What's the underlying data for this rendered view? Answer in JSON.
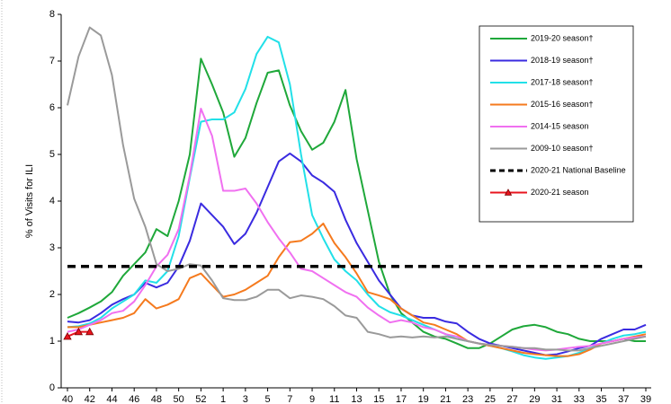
{
  "chart_data": {
    "type": "line",
    "ylabel": "% of Visits for ILI",
    "categories": [
      "40",
      null,
      "42",
      null,
      "44",
      null,
      "46",
      null,
      "48",
      null,
      "50",
      null,
      "52",
      null,
      "1",
      null,
      "3",
      null,
      "5",
      null,
      "7",
      null,
      "9",
      null,
      "11",
      null,
      "13",
      null,
      "15",
      null,
      "17",
      null,
      "19",
      null,
      "21",
      null,
      "23",
      null,
      "25",
      null,
      "27",
      null,
      "29",
      null,
      "31",
      null,
      "33",
      null,
      "35",
      null,
      "37",
      null,
      "39"
    ],
    "ylim": [
      0,
      8
    ],
    "yticks": [
      0,
      1,
      2,
      3,
      4,
      5,
      6,
      7,
      8
    ],
    "legend": "upper right",
    "series": [
      {
        "name": "2019-20 season†",
        "color": "#1fa83a",
        "values": [
          1.5,
          1.6,
          1.72,
          1.85,
          2.05,
          2.4,
          2.65,
          2.9,
          3.4,
          3.25,
          4.0,
          5.0,
          7.05,
          6.5,
          5.9,
          4.95,
          5.35,
          6.1,
          6.75,
          6.8,
          6.05,
          5.5,
          5.1,
          5.25,
          5.7,
          6.38,
          4.9,
          3.8,
          2.7,
          2.0,
          1.6,
          1.4,
          1.2,
          1.1,
          1.05,
          0.95,
          0.85,
          0.85,
          0.95,
          1.1,
          1.25,
          1.32,
          1.35,
          1.3,
          1.2,
          1.15,
          1.05,
          1.0,
          1.0,
          1.0,
          1.05,
          1.0,
          1.0
        ]
      },
      {
        "name": "2018-19 season†",
        "color": "#3a2be0",
        "values": [
          1.42,
          1.4,
          1.45,
          1.6,
          1.78,
          1.9,
          2.0,
          2.25,
          2.15,
          2.25,
          2.6,
          3.15,
          3.95,
          3.7,
          3.45,
          3.08,
          3.3,
          3.75,
          4.3,
          4.85,
          5.02,
          4.85,
          4.55,
          4.4,
          4.2,
          3.6,
          3.1,
          2.7,
          2.3,
          2.0,
          1.7,
          1.55,
          1.5,
          1.5,
          1.42,
          1.38,
          1.2,
          1.05,
          0.95,
          0.9,
          0.85,
          0.8,
          0.75,
          0.7,
          0.72,
          0.78,
          0.85,
          0.9,
          1.05,
          1.15,
          1.25,
          1.25,
          1.35
        ]
      },
      {
        "name": "2017-18 season†",
        "color": "#22e0e8",
        "values": [
          1.3,
          1.32,
          1.38,
          1.5,
          1.7,
          1.85,
          2.0,
          2.3,
          2.25,
          2.5,
          3.25,
          4.5,
          5.7,
          5.75,
          5.75,
          5.9,
          6.4,
          7.15,
          7.52,
          7.4,
          6.5,
          5.0,
          3.7,
          3.2,
          2.75,
          2.5,
          2.3,
          2.0,
          1.75,
          1.62,
          1.55,
          1.45,
          1.35,
          1.25,
          1.15,
          1.05,
          1.0,
          0.95,
          0.9,
          0.85,
          0.78,
          0.7,
          0.65,
          0.62,
          0.65,
          0.68,
          0.75,
          0.85,
          0.95,
          1.05,
          1.12,
          1.15,
          1.2
        ]
      },
      {
        "name": "2015-16 season†",
        "color": "#f57a1e",
        "values": [
          1.3,
          1.3,
          1.35,
          1.4,
          1.45,
          1.5,
          1.6,
          1.9,
          1.7,
          1.78,
          1.9,
          2.35,
          2.45,
          2.2,
          1.95,
          2.0,
          2.1,
          2.25,
          2.4,
          2.8,
          3.12,
          3.15,
          3.3,
          3.52,
          3.1,
          2.8,
          2.45,
          2.05,
          1.98,
          1.9,
          1.7,
          1.55,
          1.4,
          1.35,
          1.25,
          1.15,
          1.0,
          0.95,
          0.9,
          0.85,
          0.8,
          0.75,
          0.72,
          0.7,
          0.68,
          0.68,
          0.72,
          0.82,
          0.95,
          1.0,
          1.05,
          1.1,
          1.15
        ]
      },
      {
        "name": "2014-15 season",
        "color": "#f070f0",
        "values": [
          1.2,
          1.25,
          1.35,
          1.45,
          1.6,
          1.65,
          1.85,
          2.2,
          2.6,
          2.85,
          3.4,
          4.55,
          5.98,
          5.4,
          4.22,
          4.22,
          4.27,
          3.95,
          3.55,
          3.2,
          2.9,
          2.55,
          2.5,
          2.35,
          2.2,
          2.05,
          1.95,
          1.72,
          1.55,
          1.4,
          1.45,
          1.4,
          1.3,
          1.25,
          1.15,
          1.1,
          1.0,
          0.95,
          0.92,
          0.9,
          0.88,
          0.85,
          0.82,
          0.8,
          0.82,
          0.85,
          0.88,
          0.9,
          0.95,
          1.0,
          1.05,
          1.08,
          1.1
        ]
      },
      {
        "name": "2009-10 season†",
        "color": "#9a9a9a",
        "values": [
          6.05,
          7.1,
          7.72,
          7.55,
          6.7,
          5.2,
          4.05,
          3.45,
          2.65,
          2.5,
          2.55,
          2.65,
          2.62,
          2.3,
          1.92,
          1.88,
          1.88,
          1.95,
          2.1,
          2.1,
          1.92,
          1.98,
          1.95,
          1.9,
          1.75,
          1.55,
          1.5,
          1.2,
          1.15,
          1.08,
          1.1,
          1.08,
          1.1,
          1.08,
          1.1,
          1.05,
          1.0,
          0.95,
          0.92,
          0.9,
          0.88,
          0.85,
          0.85,
          0.82,
          0.82,
          0.8,
          0.8,
          0.85,
          0.9,
          0.95,
          1.0,
          1.05,
          1.1
        ]
      },
      {
        "name": "2020-21 National Baseline",
        "color": "#000000",
        "dashed": true,
        "value": 2.6
      },
      {
        "name": "2020-21 season",
        "color": "#e8141e",
        "markers": true,
        "values": [
          1.1,
          1.2,
          1.2,
          null,
          null,
          null,
          null,
          null,
          null,
          null,
          null,
          null,
          null,
          null,
          null,
          null,
          null,
          null,
          null,
          null,
          null,
          null,
          null,
          null,
          null,
          null,
          null,
          null,
          null,
          null,
          null,
          null,
          null,
          null,
          null,
          null,
          null,
          null,
          null,
          null,
          null,
          null,
          null,
          null,
          null,
          null,
          null,
          null,
          null,
          null,
          null,
          null,
          null
        ]
      }
    ]
  }
}
